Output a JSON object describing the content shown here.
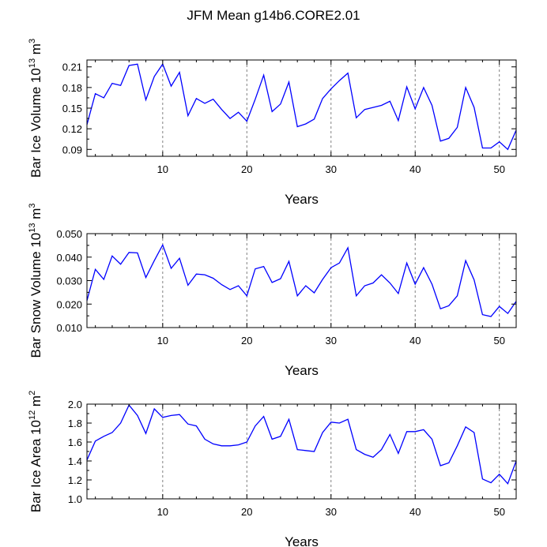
{
  "title": "JFM Mean g14b6.CORE2.01",
  "colors": {
    "line": "#0000ff",
    "axis": "#000000",
    "grid": "#808080"
  },
  "chart_data": [
    {
      "type": "line",
      "xlabel": "Years",
      "ylabel": {
        "base": "Bar Ice Volume 10",
        "exp": "13",
        "unit": " m",
        "unit_exp": "3"
      },
      "xlim": [
        1,
        52
      ],
      "ylim": [
        0.08,
        0.22
      ],
      "xticks": [
        10,
        20,
        30,
        40,
        50
      ],
      "xtick_labels": [
        "10",
        "20",
        "30",
        "40",
        "50"
      ],
      "yticks": [
        0.09,
        0.12,
        0.15,
        0.18,
        0.21
      ],
      "ytick_labels": [
        "0.09",
        "0.12",
        "0.15",
        "0.18",
        "0.21"
      ],
      "grid": "vertical dashed at x ticks",
      "series": [
        {
          "name": "Bar Ice Volume",
          "x": [
            1,
            2,
            3,
            4,
            5,
            6,
            7,
            8,
            9,
            10,
            11,
            12,
            13,
            14,
            15,
            16,
            17,
            18,
            19,
            20,
            21,
            22,
            23,
            24,
            25,
            26,
            27,
            28,
            29,
            30,
            31,
            32,
            33,
            34,
            35,
            36,
            37,
            38,
            39,
            40,
            41,
            42,
            43,
            44,
            45,
            46,
            47,
            48,
            49,
            50,
            51,
            52
          ],
          "values": [
            0.126,
            0.171,
            0.165,
            0.186,
            0.183,
            0.212,
            0.214,
            0.162,
            0.196,
            0.214,
            0.182,
            0.202,
            0.139,
            0.164,
            0.157,
            0.163,
            0.148,
            0.135,
            0.144,
            0.131,
            0.163,
            0.198,
            0.145,
            0.156,
            0.188,
            0.123,
            0.127,
            0.134,
            0.164,
            0.178,
            0.19,
            0.201,
            0.136,
            0.148,
            0.151,
            0.154,
            0.16,
            0.132,
            0.181,
            0.149,
            0.18,
            0.154,
            0.102,
            0.106,
            0.122,
            0.18,
            0.151,
            0.092,
            0.092,
            0.101,
            0.09,
            0.118
          ]
        }
      ]
    },
    {
      "type": "line",
      "xlabel": "Years",
      "ylabel": {
        "base": "Bar Snow Volume 10",
        "exp": "13",
        "unit": " m",
        "unit_exp": "3"
      },
      "xlim": [
        1,
        52
      ],
      "ylim": [
        0.01,
        0.05
      ],
      "xticks": [
        10,
        20,
        30,
        40,
        50
      ],
      "xtick_labels": [
        "10",
        "20",
        "30",
        "40",
        "50"
      ],
      "yticks": [
        0.01,
        0.02,
        0.03,
        0.04,
        0.05
      ],
      "ytick_labels": [
        "0.010",
        "0.020",
        "0.030",
        "0.040",
        "0.050"
      ],
      "grid": "vertical dashed at x ticks",
      "series": [
        {
          "name": "Bar Snow Volume",
          "x": [
            1,
            2,
            3,
            4,
            5,
            6,
            7,
            8,
            9,
            10,
            11,
            12,
            13,
            14,
            15,
            16,
            17,
            18,
            19,
            20,
            21,
            22,
            23,
            24,
            25,
            26,
            27,
            28,
            29,
            30,
            31,
            32,
            33,
            34,
            35,
            36,
            37,
            38,
            39,
            40,
            41,
            42,
            43,
            44,
            45,
            46,
            47,
            48,
            49,
            50,
            51,
            52
          ],
          "values": [
            0.0215,
            0.0348,
            0.0305,
            0.0405,
            0.037,
            0.042,
            0.0418,
            0.0313,
            0.0385,
            0.0452,
            0.0352,
            0.0395,
            0.028,
            0.0328,
            0.0325,
            0.031,
            0.0283,
            0.0262,
            0.0278,
            0.0235,
            0.035,
            0.036,
            0.0292,
            0.0308,
            0.0382,
            0.0235,
            0.0278,
            0.0248,
            0.0305,
            0.0355,
            0.0375,
            0.044,
            0.0235,
            0.0278,
            0.029,
            0.0325,
            0.029,
            0.0245,
            0.0375,
            0.0285,
            0.0355,
            0.0285,
            0.018,
            0.0193,
            0.0235,
            0.0385,
            0.0303,
            0.0155,
            0.0147,
            0.019,
            0.016,
            0.0212
          ]
        }
      ]
    },
    {
      "type": "line",
      "xlabel": "Years",
      "ylabel": {
        "base": "Bar Ice Area 10",
        "exp": "12",
        "unit": " m",
        "unit_exp": "2"
      },
      "xlim": [
        1,
        52
      ],
      "ylim": [
        1.0,
        2.0
      ],
      "xticks": [
        10,
        20,
        30,
        40,
        50
      ],
      "xtick_labels": [
        "10",
        "20",
        "30",
        "40",
        "50"
      ],
      "yticks": [
        1.0,
        1.2,
        1.4,
        1.6,
        1.8,
        2.0
      ],
      "ytick_labels": [
        "1.0",
        "1.2",
        "1.4",
        "1.6",
        "1.8",
        "2.0"
      ],
      "grid": "vertical dashed at x ticks",
      "series": [
        {
          "name": "Bar Ice Area",
          "x": [
            1,
            2,
            3,
            4,
            5,
            6,
            7,
            8,
            9,
            10,
            11,
            12,
            13,
            14,
            15,
            16,
            17,
            18,
            19,
            20,
            21,
            22,
            23,
            24,
            25,
            26,
            27,
            28,
            29,
            30,
            31,
            32,
            33,
            34,
            35,
            36,
            37,
            38,
            39,
            40,
            41,
            42,
            43,
            44,
            45,
            46,
            47,
            48,
            49,
            50,
            51,
            52
          ],
          "values": [
            1.41,
            1.61,
            1.66,
            1.7,
            1.8,
            1.99,
            1.88,
            1.69,
            1.95,
            1.86,
            1.88,
            1.89,
            1.79,
            1.77,
            1.63,
            1.58,
            1.56,
            1.56,
            1.57,
            1.6,
            1.77,
            1.87,
            1.63,
            1.66,
            1.84,
            1.52,
            1.51,
            1.5,
            1.7,
            1.81,
            1.8,
            1.84,
            1.52,
            1.47,
            1.44,
            1.52,
            1.68,
            1.48,
            1.71,
            1.71,
            1.73,
            1.63,
            1.35,
            1.38,
            1.56,
            1.76,
            1.7,
            1.21,
            1.17,
            1.26,
            1.16,
            1.4
          ]
        }
      ]
    }
  ]
}
